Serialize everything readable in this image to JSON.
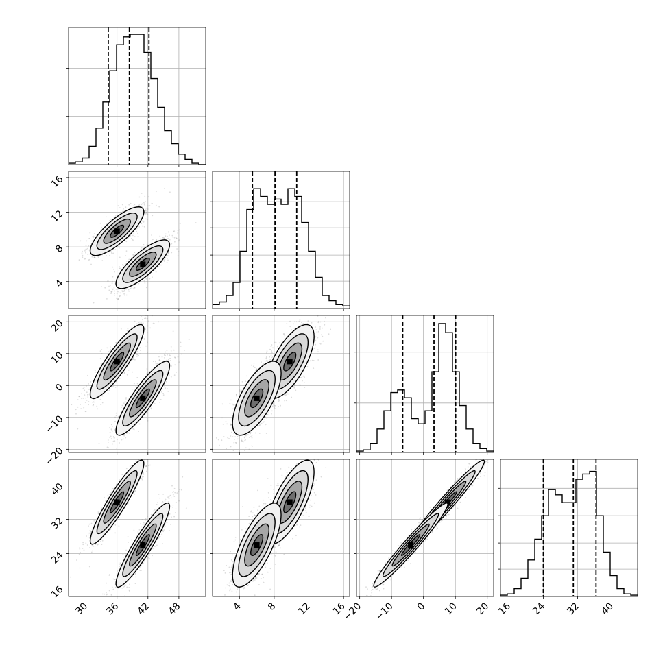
{
  "chart_data": {
    "type": "corner",
    "grid": true,
    "colors": {
      "line": "#000000",
      "points": "#808080",
      "grid": "#b0b0b0",
      "frame": "#000000"
    },
    "parameters": [
      {
        "ticks": [
          30,
          36,
          42,
          48
        ],
        "range": [
          26.6,
          53.2
        ],
        "quantiles": [
          34.3,
          38.4,
          42.2
        ],
        "hist": {
          "start": 26.6,
          "step": 1.33,
          "heights": [
            1,
            2,
            5,
            14,
            28,
            48,
            72,
            92,
            98,
            100,
            100,
            86,
            66,
            44,
            26,
            16,
            8,
            4,
            1,
            0
          ],
          "y_grid": [
            37,
            74
          ]
        },
        "xgrid": [
          30,
          36,
          42,
          48
        ]
      },
      {
        "ticks": [
          4,
          8,
          12,
          16
        ],
        "range": [
          0.9,
          16.7
        ],
        "quantiles": [
          5.5,
          8.1,
          10.6
        ],
        "hist": {
          "start": 0.9,
          "step": 0.79,
          "heights": [
            3,
            5,
            10,
            20,
            44,
            76,
            92,
            86,
            80,
            84,
            80,
            92,
            86,
            66,
            44,
            24,
            10,
            6,
            3,
            2
          ],
          "y_grid": [
            21,
            41,
            62,
            82
          ]
        },
        "xgrid": [
          4,
          8,
          12,
          16
        ]
      },
      {
        "ticks": [
          -20,
          -10,
          0,
          10,
          20
        ],
        "tick_labels": [
          "−20",
          "−10",
          "0",
          "10",
          "20"
        ],
        "range": [
          -21.0,
          22.0
        ],
        "quantiles": [
          -6.5,
          3.3,
          10.1
        ],
        "hist": {
          "start": -21.0,
          "step": 2.15,
          "heights": [
            1,
            2,
            7,
            18,
            32,
            46,
            48,
            42,
            26,
            22,
            32,
            62,
            99,
            92,
            62,
            36,
            18,
            7,
            3,
            1
          ],
          "y_grid": [
            38,
            77
          ]
        },
        "xgrid": [
          -20,
          -10,
          0,
          10,
          20
        ]
      },
      {
        "ticks": [
          16,
          24,
          32,
          40
        ],
        "range": [
          14.0,
          46.0
        ],
        "quantiles": [
          24.0,
          31.0,
          36.3
        ],
        "hist": {
          "start": 14.0,
          "step": 1.6,
          "heights": [
            1,
            2,
            6,
            14,
            28,
            44,
            62,
            82,
            78,
            72,
            72,
            90,
            94,
            96,
            62,
            34,
            16,
            6,
            2,
            1
          ],
          "y_grid": [
            21,
            41,
            62,
            83
          ]
        },
        "xgrid": [
          16,
          24,
          32,
          40
        ]
      }
    ],
    "modes": [
      {
        "mean": [
          36.0,
          9.8,
          7.5,
          36.0
        ],
        "sd": [
          2.6,
          1.4,
          5.8,
          4.9
        ],
        "corr": [
          [
            1,
            0.8,
            0.88,
            0.92
          ],
          [
            0.8,
            1,
            0.68,
            0.72
          ],
          [
            0.88,
            0.68,
            1,
            0.97
          ],
          [
            0.92,
            0.72,
            0.97,
            1
          ]
        ]
      },
      {
        "mean": [
          41.0,
          6.0,
          -4.0,
          26.0
        ],
        "sd": [
          2.6,
          1.4,
          5.8,
          4.9
        ],
        "corr": [
          [
            1,
            0.8,
            0.88,
            0.92
          ],
          [
            0.8,
            1,
            0.68,
            0.72
          ],
          [
            0.88,
            0.68,
            1,
            0.97
          ],
          [
            0.92,
            0.72,
            0.97,
            1
          ]
        ]
      }
    ]
  }
}
